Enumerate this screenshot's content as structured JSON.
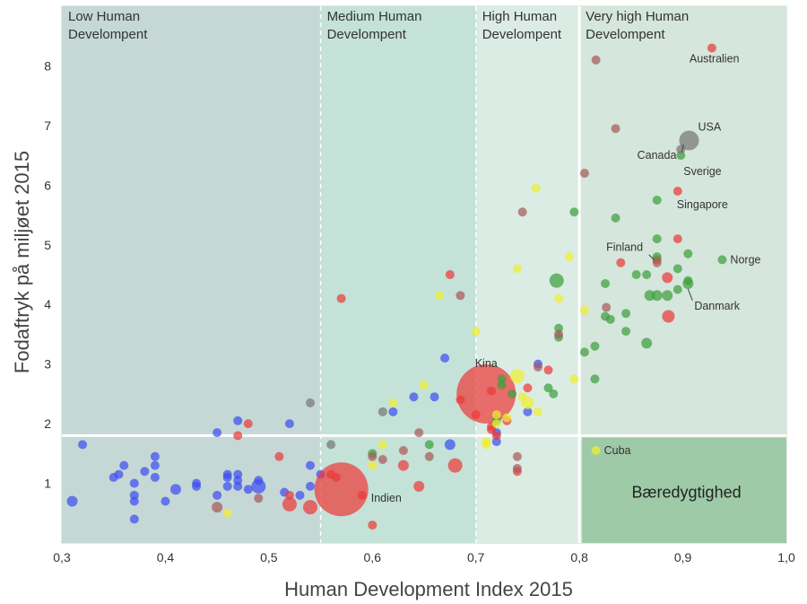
{
  "chart_data": {
    "type": "scatter",
    "xlabel": "Human Development Index 2015",
    "ylabel": "Fodaftryk på miljøet 2015",
    "xlim": [
      0.3,
      1.0
    ],
    "ylim": [
      0,
      9
    ],
    "xticks": [
      "0,3",
      "0,4",
      "0,5",
      "0,6",
      "0,7",
      "0,8",
      "0,9",
      "1,0"
    ],
    "yticks": [
      "1",
      "2",
      "3",
      "4",
      "5",
      "6",
      "7",
      "8"
    ],
    "regions": [
      {
        "label_line1": "Low Human",
        "label_line2": "Develompent",
        "x0": 0.3,
        "x1": 0.55,
        "color": "#c5d8d6"
      },
      {
        "label_line1": "Medium Human",
        "label_line2": "Develompent",
        "x0": 0.55,
        "x1": 0.7,
        "color": "#c4e2d7"
      },
      {
        "label_line1": "High Human",
        "label_line2": "Develompent",
        "x0": 0.7,
        "x1": 0.8,
        "color": "#dbece5"
      },
      {
        "label_line1": "Very high Human",
        "label_line2": "Develompent",
        "x0": 0.8,
        "x1": 1.0,
        "color": "#d5e6dc"
      }
    ],
    "threshold_y": 1.8,
    "threshold_x": 0.8,
    "sustainability_label": "Bæredygtighed",
    "sustainability_color": "#9ecaa8",
    "colors": {
      "blue": "#3f4ff0",
      "red": "#ec3a3a",
      "green": "#3f9f3f",
      "yellow": "#eeee30",
      "brown": "#a85a5a",
      "gray": "#777777"
    },
    "annotations": [
      {
        "text": "Australien",
        "x": 0.928,
        "y": 8.3
      },
      {
        "text": "USA",
        "x": 0.906,
        "y": 6.75
      },
      {
        "text": "Canada",
        "x": 0.899,
        "y": 6.55
      },
      {
        "text": "Sverige",
        "x": 0.898,
        "y": 6.5
      },
      {
        "text": "Singapore",
        "x": 0.895,
        "y": 5.9
      },
      {
        "text": "Finland",
        "x": 0.871,
        "y": 4.7
      },
      {
        "text": "Norge",
        "x": 0.938,
        "y": 4.75
      },
      {
        "text": "Danmark",
        "x": 0.905,
        "y": 4.35
      },
      {
        "text": "Kina",
        "x": 0.713,
        "y": 2.5
      },
      {
        "text": "Indien",
        "x": 0.59,
        "y": 0.9
      },
      {
        "text": "Cuba",
        "x": 0.816,
        "y": 1.55
      }
    ],
    "points": [
      {
        "x": 0.31,
        "y": 0.7,
        "r": 6,
        "c": "blue"
      },
      {
        "x": 0.32,
        "y": 1.65,
        "r": 5,
        "c": "blue"
      },
      {
        "x": 0.35,
        "y": 1.1,
        "r": 5,
        "c": "blue"
      },
      {
        "x": 0.355,
        "y": 1.15,
        "r": 5,
        "c": "blue"
      },
      {
        "x": 0.36,
        "y": 1.3,
        "r": 5,
        "c": "blue"
      },
      {
        "x": 0.37,
        "y": 1.0,
        "r": 5,
        "c": "blue"
      },
      {
        "x": 0.37,
        "y": 0.8,
        "r": 5,
        "c": "blue"
      },
      {
        "x": 0.37,
        "y": 0.7,
        "r": 5,
        "c": "blue"
      },
      {
        "x": 0.37,
        "y": 0.4,
        "r": 5,
        "c": "blue"
      },
      {
        "x": 0.38,
        "y": 1.2,
        "r": 5,
        "c": "blue"
      },
      {
        "x": 0.39,
        "y": 1.45,
        "r": 5,
        "c": "blue"
      },
      {
        "x": 0.39,
        "y": 1.3,
        "r": 5,
        "c": "blue"
      },
      {
        "x": 0.39,
        "y": 1.1,
        "r": 5,
        "c": "blue"
      },
      {
        "x": 0.4,
        "y": 0.7,
        "r": 5,
        "c": "blue"
      },
      {
        "x": 0.41,
        "y": 0.9,
        "r": 6,
        "c": "blue"
      },
      {
        "x": 0.43,
        "y": 1.0,
        "r": 5,
        "c": "blue"
      },
      {
        "x": 0.43,
        "y": 0.95,
        "r": 5,
        "c": "blue"
      },
      {
        "x": 0.45,
        "y": 1.85,
        "r": 5,
        "c": "blue"
      },
      {
        "x": 0.45,
        "y": 0.8,
        "r": 5,
        "c": "blue"
      },
      {
        "x": 0.46,
        "y": 1.15,
        "r": 5,
        "c": "blue"
      },
      {
        "x": 0.46,
        "y": 1.1,
        "r": 5,
        "c": "blue"
      },
      {
        "x": 0.46,
        "y": 0.95,
        "r": 5,
        "c": "blue"
      },
      {
        "x": 0.47,
        "y": 2.05,
        "r": 5,
        "c": "blue"
      },
      {
        "x": 0.47,
        "y": 1.15,
        "r": 5,
        "c": "blue"
      },
      {
        "x": 0.47,
        "y": 1.05,
        "r": 5,
        "c": "blue"
      },
      {
        "x": 0.47,
        "y": 0.95,
        "r": 5,
        "c": "blue"
      },
      {
        "x": 0.48,
        "y": 0.9,
        "r": 5,
        "c": "blue"
      },
      {
        "x": 0.49,
        "y": 1.05,
        "r": 5,
        "c": "blue"
      },
      {
        "x": 0.49,
        "y": 0.95,
        "r": 8,
        "c": "blue"
      },
      {
        "x": 0.52,
        "y": 2.0,
        "r": 5,
        "c": "blue"
      },
      {
        "x": 0.515,
        "y": 0.85,
        "r": 5,
        "c": "blue"
      },
      {
        "x": 0.53,
        "y": 0.8,
        "r": 5,
        "c": "blue"
      },
      {
        "x": 0.54,
        "y": 1.3,
        "r": 5,
        "c": "blue"
      },
      {
        "x": 0.54,
        "y": 0.95,
        "r": 5,
        "c": "blue"
      },
      {
        "x": 0.55,
        "y": 1.15,
        "r": 5,
        "c": "blue"
      },
      {
        "x": 0.62,
        "y": 2.2,
        "r": 5,
        "c": "blue"
      },
      {
        "x": 0.64,
        "y": 2.45,
        "r": 5,
        "c": "blue"
      },
      {
        "x": 0.66,
        "y": 2.45,
        "r": 5,
        "c": "blue"
      },
      {
        "x": 0.67,
        "y": 3.1,
        "r": 5,
        "c": "blue"
      },
      {
        "x": 0.675,
        "y": 1.65,
        "r": 6,
        "c": "blue"
      },
      {
        "x": 0.72,
        "y": 1.85,
        "r": 5,
        "c": "blue"
      },
      {
        "x": 0.72,
        "y": 1.7,
        "r": 5,
        "c": "blue"
      },
      {
        "x": 0.75,
        "y": 2.2,
        "r": 5,
        "c": "blue"
      },
      {
        "x": 0.76,
        "y": 3.0,
        "r": 5,
        "c": "blue"
      },
      {
        "x": 0.48,
        "y": 2.0,
        "r": 5,
        "c": "red"
      },
      {
        "x": 0.47,
        "y": 1.8,
        "r": 5,
        "c": "red"
      },
      {
        "x": 0.51,
        "y": 1.45,
        "r": 5,
        "c": "red"
      },
      {
        "x": 0.52,
        "y": 0.8,
        "r": 5,
        "c": "red"
      },
      {
        "x": 0.52,
        "y": 0.65,
        "r": 8,
        "c": "red"
      },
      {
        "x": 0.54,
        "y": 0.6,
        "r": 8,
        "c": "red"
      },
      {
        "x": 0.56,
        "y": 1.15,
        "r": 5,
        "c": "red"
      },
      {
        "x": 0.565,
        "y": 1.1,
        "r": 5,
        "c": "red"
      },
      {
        "x": 0.57,
        "y": 0.9,
        "r": 30,
        "c": "red"
      },
      {
        "x": 0.59,
        "y": 0.8,
        "r": 5,
        "c": "red"
      },
      {
        "x": 0.6,
        "y": 0.3,
        "r": 5,
        "c": "red"
      },
      {
        "x": 0.57,
        "y": 4.1,
        "r": 5,
        "c": "red"
      },
      {
        "x": 0.63,
        "y": 1.3,
        "r": 6,
        "c": "red"
      },
      {
        "x": 0.645,
        "y": 0.95,
        "r": 6,
        "c": "red"
      },
      {
        "x": 0.675,
        "y": 4.5,
        "r": 5,
        "c": "red"
      },
      {
        "x": 0.68,
        "y": 1.3,
        "r": 8,
        "c": "red"
      },
      {
        "x": 0.685,
        "y": 2.4,
        "r": 5,
        "c": "red"
      },
      {
        "x": 0.7,
        "y": 2.15,
        "r": 5,
        "c": "red"
      },
      {
        "x": 0.71,
        "y": 2.5,
        "r": 33,
        "c": "red"
      },
      {
        "x": 0.715,
        "y": 2.55,
        "r": 5,
        "c": "red"
      },
      {
        "x": 0.715,
        "y": 1.95,
        "r": 5,
        "c": "red"
      },
      {
        "x": 0.715,
        "y": 1.9,
        "r": 5,
        "c": "red"
      },
      {
        "x": 0.72,
        "y": 1.8,
        "r": 5,
        "c": "red"
      },
      {
        "x": 0.73,
        "y": 2.05,
        "r": 5,
        "c": "red"
      },
      {
        "x": 0.74,
        "y": 1.2,
        "r": 5,
        "c": "red"
      },
      {
        "x": 0.75,
        "y": 2.6,
        "r": 5,
        "c": "red"
      },
      {
        "x": 0.77,
        "y": 2.9,
        "r": 5,
        "c": "red"
      },
      {
        "x": 0.84,
        "y": 4.7,
        "r": 5,
        "c": "red"
      },
      {
        "x": 0.875,
        "y": 4.75,
        "r": 5,
        "c": "red"
      },
      {
        "x": 0.885,
        "y": 4.45,
        "r": 6,
        "c": "red"
      },
      {
        "x": 0.886,
        "y": 3.8,
        "r": 7,
        "c": "red"
      },
      {
        "x": 0.895,
        "y": 5.1,
        "r": 5,
        "c": "red"
      },
      {
        "x": 0.895,
        "y": 5.9,
        "r": 5,
        "c": "red"
      },
      {
        "x": 0.928,
        "y": 8.3,
        "r": 5,
        "c": "red"
      },
      {
        "x": 0.6,
        "y": 1.5,
        "r": 5,
        "c": "green"
      },
      {
        "x": 0.655,
        "y": 1.65,
        "r": 5,
        "c": "green"
      },
      {
        "x": 0.72,
        "y": 2.05,
        "r": 5,
        "c": "green"
      },
      {
        "x": 0.725,
        "y": 2.75,
        "r": 5,
        "c": "green"
      },
      {
        "x": 0.725,
        "y": 2.65,
        "r": 5,
        "c": "green"
      },
      {
        "x": 0.735,
        "y": 2.5,
        "r": 5,
        "c": "green"
      },
      {
        "x": 0.77,
        "y": 2.6,
        "r": 5,
        "c": "green"
      },
      {
        "x": 0.775,
        "y": 2.5,
        "r": 5,
        "c": "green"
      },
      {
        "x": 0.778,
        "y": 4.4,
        "r": 8,
        "c": "green"
      },
      {
        "x": 0.78,
        "y": 3.45,
        "r": 5,
        "c": "green"
      },
      {
        "x": 0.78,
        "y": 3.6,
        "r": 5,
        "c": "green"
      },
      {
        "x": 0.795,
        "y": 5.55,
        "r": 5,
        "c": "green"
      },
      {
        "x": 0.805,
        "y": 3.2,
        "r": 5,
        "c": "green"
      },
      {
        "x": 0.815,
        "y": 2.75,
        "r": 5,
        "c": "green"
      },
      {
        "x": 0.815,
        "y": 3.3,
        "r": 5,
        "c": "green"
      },
      {
        "x": 0.825,
        "y": 3.8,
        "r": 5,
        "c": "green"
      },
      {
        "x": 0.825,
        "y": 4.35,
        "r": 5,
        "c": "green"
      },
      {
        "x": 0.83,
        "y": 3.75,
        "r": 5,
        "c": "green"
      },
      {
        "x": 0.835,
        "y": 5.45,
        "r": 5,
        "c": "green"
      },
      {
        "x": 0.845,
        "y": 3.55,
        "r": 5,
        "c": "green"
      },
      {
        "x": 0.845,
        "y": 3.85,
        "r": 5,
        "c": "green"
      },
      {
        "x": 0.855,
        "y": 4.5,
        "r": 5,
        "c": "green"
      },
      {
        "x": 0.865,
        "y": 3.35,
        "r": 6,
        "c": "green"
      },
      {
        "x": 0.865,
        "y": 4.5,
        "r": 5,
        "c": "green"
      },
      {
        "x": 0.868,
        "y": 4.15,
        "r": 6,
        "c": "green"
      },
      {
        "x": 0.875,
        "y": 4.15,
        "r": 6,
        "c": "green"
      },
      {
        "x": 0.875,
        "y": 5.1,
        "r": 5,
        "c": "green"
      },
      {
        "x": 0.875,
        "y": 5.75,
        "r": 5,
        "c": "green"
      },
      {
        "x": 0.875,
        "y": 4.8,
        "r": 5,
        "c": "green"
      },
      {
        "x": 0.885,
        "y": 4.15,
        "r": 6,
        "c": "green"
      },
      {
        "x": 0.895,
        "y": 4.25,
        "r": 5,
        "c": "green"
      },
      {
        "x": 0.895,
        "y": 4.6,
        "r": 5,
        "c": "green"
      },
      {
        "x": 0.898,
        "y": 6.5,
        "r": 5,
        "c": "green"
      },
      {
        "x": 0.905,
        "y": 4.85,
        "r": 5,
        "c": "green"
      },
      {
        "x": 0.905,
        "y": 4.35,
        "r": 6,
        "c": "green"
      },
      {
        "x": 0.905,
        "y": 4.4,
        "r": 5,
        "c": "green"
      },
      {
        "x": 0.938,
        "y": 4.75,
        "r": 5,
        "c": "green"
      },
      {
        "x": 0.46,
        "y": 0.5,
        "r": 5,
        "c": "yellow"
      },
      {
        "x": 0.6,
        "y": 1.3,
        "r": 5,
        "c": "yellow"
      },
      {
        "x": 0.61,
        "y": 1.65,
        "r": 5,
        "c": "yellow"
      },
      {
        "x": 0.62,
        "y": 2.35,
        "r": 5,
        "c": "yellow"
      },
      {
        "x": 0.65,
        "y": 2.65,
        "r": 5,
        "c": "yellow"
      },
      {
        "x": 0.665,
        "y": 4.15,
        "r": 5,
        "c": "yellow"
      },
      {
        "x": 0.7,
        "y": 3.55,
        "r": 5,
        "c": "yellow"
      },
      {
        "x": 0.71,
        "y": 1.7,
        "r": 5,
        "c": "yellow"
      },
      {
        "x": 0.71,
        "y": 1.65,
        "r": 5,
        "c": "yellow"
      },
      {
        "x": 0.72,
        "y": 2.15,
        "r": 5,
        "c": "yellow"
      },
      {
        "x": 0.72,
        "y": 2.0,
        "r": 5,
        "c": "yellow"
      },
      {
        "x": 0.73,
        "y": 2.1,
        "r": 5,
        "c": "yellow"
      },
      {
        "x": 0.74,
        "y": 2.8,
        "r": 8,
        "c": "yellow"
      },
      {
        "x": 0.74,
        "y": 4.6,
        "r": 5,
        "c": "yellow"
      },
      {
        "x": 0.745,
        "y": 2.45,
        "r": 5,
        "c": "yellow"
      },
      {
        "x": 0.75,
        "y": 2.35,
        "r": 7,
        "c": "yellow"
      },
      {
        "x": 0.758,
        "y": 5.95,
        "r": 5,
        "c": "yellow"
      },
      {
        "x": 0.76,
        "y": 2.2,
        "r": 5,
        "c": "yellow"
      },
      {
        "x": 0.78,
        "y": 4.1,
        "r": 5,
        "c": "yellow"
      },
      {
        "x": 0.79,
        "y": 4.8,
        "r": 5,
        "c": "yellow"
      },
      {
        "x": 0.795,
        "y": 2.75,
        "r": 5,
        "c": "yellow"
      },
      {
        "x": 0.805,
        "y": 3.9,
        "r": 5,
        "c": "yellow"
      },
      {
        "x": 0.816,
        "y": 1.55,
        "r": 5,
        "c": "yellow"
      },
      {
        "x": 0.45,
        "y": 0.6,
        "r": 6,
        "c": "brown"
      },
      {
        "x": 0.49,
        "y": 0.75,
        "r": 5,
        "c": "brown"
      },
      {
        "x": 0.6,
        "y": 1.45,
        "r": 5,
        "c": "brown"
      },
      {
        "x": 0.61,
        "y": 1.4,
        "r": 5,
        "c": "brown"
      },
      {
        "x": 0.63,
        "y": 1.55,
        "r": 5,
        "c": "brown"
      },
      {
        "x": 0.645,
        "y": 1.85,
        "r": 5,
        "c": "brown"
      },
      {
        "x": 0.655,
        "y": 1.45,
        "r": 5,
        "c": "brown"
      },
      {
        "x": 0.685,
        "y": 4.15,
        "r": 5,
        "c": "brown"
      },
      {
        "x": 0.745,
        "y": 5.55,
        "r": 5,
        "c": "brown"
      },
      {
        "x": 0.74,
        "y": 1.45,
        "r": 5,
        "c": "brown"
      },
      {
        "x": 0.74,
        "y": 1.25,
        "r": 5,
        "c": "brown"
      },
      {
        "x": 0.76,
        "y": 2.95,
        "r": 5,
        "c": "brown"
      },
      {
        "x": 0.78,
        "y": 3.5,
        "r": 5,
        "c": "brown"
      },
      {
        "x": 0.805,
        "y": 6.2,
        "r": 5,
        "c": "brown"
      },
      {
        "x": 0.816,
        "y": 8.1,
        "r": 5,
        "c": "brown"
      },
      {
        "x": 0.826,
        "y": 3.95,
        "r": 5,
        "c": "brown"
      },
      {
        "x": 0.835,
        "y": 6.95,
        "r": 5,
        "c": "brown"
      },
      {
        "x": 0.875,
        "y": 4.7,
        "r": 5,
        "c": "brown"
      },
      {
        "x": 0.54,
        "y": 2.35,
        "r": 5,
        "c": "gray"
      },
      {
        "x": 0.56,
        "y": 1.65,
        "r": 5,
        "c": "gray"
      },
      {
        "x": 0.61,
        "y": 2.2,
        "r": 5,
        "c": "gray"
      },
      {
        "x": 0.898,
        "y": 6.6,
        "r": 5,
        "c": "gray"
      },
      {
        "x": 0.906,
        "y": 6.75,
        "r": 11,
        "c": "gray"
      }
    ]
  }
}
